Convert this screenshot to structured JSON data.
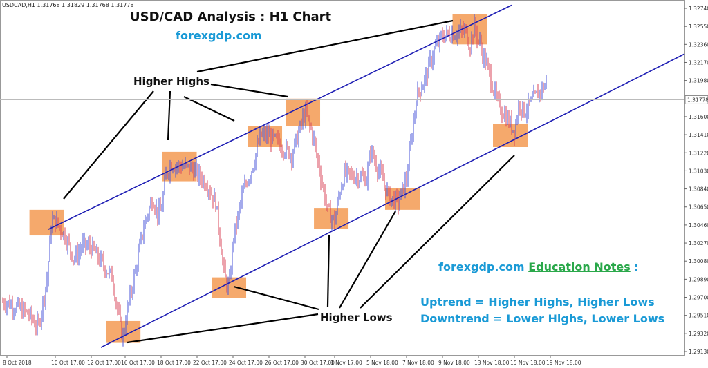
{
  "header": {
    "symbol_info": "USDCAD,H1  1.31768 1.31829 1.31768 1.31778"
  },
  "title": "USD/CAD Analysis : H1 Chart",
  "site": "forexgdp.com",
  "labels": {
    "higher_highs": "Higher Highs",
    "higher_lows": "Higher Lows"
  },
  "notes": {
    "site": "forexgdp.com",
    "education": "Education Notes",
    "colon": " :",
    "uptrend": "Uptrend = Higher Highs, Higher Lows",
    "downtrend": "Downtrend = Lower Highs, Lower Lows"
  },
  "colors": {
    "bull": "#4a55d8",
    "bear": "#d8455a",
    "trendline": "#1e1eb4",
    "box": "#f39a52",
    "grid": "#cccccc"
  },
  "chart_data": {
    "type": "line",
    "title": "USD/CAD Analysis : H1 Chart",
    "x_ticks": [
      "8 Oct 2018",
      "10 Oct 17:00",
      "12 Oct 17:00",
      "16 Oct 17:00",
      "18 Oct 17:00",
      "22 Oct 17:00",
      "24 Oct 17:00",
      "26 Oct 17:00",
      "30 Oct 17:00",
      "1 Nov 17:00",
      "5 Nov 18:00",
      "7 Nov 18:00",
      "9 Nov 18:00",
      "13 Nov 18:00",
      "15 Nov 18:00",
      "19 Nov 18:00"
    ],
    "y_ticks": [
      1.3274,
      1.3255,
      1.3236,
      1.3217,
      1.3198,
      1.316,
      1.3141,
      1.3122,
      1.3103,
      1.3084,
      1.3065,
      1.3046,
      1.3027,
      1.3008,
      1.2989,
      1.297,
      1.2951,
      1.2932,
      1.2913
    ],
    "y_tick_labels": [
      "1.32740",
      "1.32550",
      "1.32360",
      "1.32170",
      "1.31980",
      "1.31600",
      "1.31410",
      "1.31220",
      "1.31030",
      "1.30840",
      "1.30650",
      "1.30460",
      "1.30270",
      "1.30080",
      "1.29890",
      "1.29700",
      "1.29510",
      "1.29320",
      "1.29130"
    ],
    "current_price": 1.31778,
    "current_price_label": "1.31778",
    "ylim": [
      1.2906,
      1.3278
    ],
    "series": [
      {
        "points": [
          [
            "8 Oct 2018",
            1.2965
          ],
          [
            "9 Oct 06:00",
            1.2952
          ],
          [
            "9 Oct 18:00",
            1.2938
          ],
          [
            "10 Oct 06:00",
            1.299
          ],
          [
            "10 Oct 12:00",
            1.305
          ],
          [
            "10 Oct 17:00",
            1.305
          ],
          [
            "11 Oct 06:00",
            1.3035
          ],
          [
            "11 Oct 18:00",
            1.301
          ],
          [
            "12 Oct 06:00",
            1.3025
          ],
          [
            "12 Oct 17:00",
            1.3022
          ],
          [
            "15 Oct 06:00",
            1.299
          ],
          [
            "15 Oct 18:00",
            1.296
          ],
          [
            "16 Oct 06:00",
            1.2935
          ],
          [
            "16 Oct 12:00",
            1.2928
          ],
          [
            "16 Oct 17:00",
            1.2945
          ],
          [
            "17 Oct 06:00",
            1.2995
          ],
          [
            "17 Oct 18:00",
            1.3045
          ],
          [
            "18 Oct 06:00",
            1.3075
          ],
          [
            "18 Oct 12:00",
            1.3058
          ],
          [
            "18 Oct 17:00",
            1.306
          ],
          [
            "19 Oct 06:00",
            1.3098
          ],
          [
            "19 Oct 18:00",
            1.311
          ],
          [
            "22 Oct 06:00",
            1.3105
          ],
          [
            "22 Oct 17:00",
            1.31
          ],
          [
            "23 Oct 06:00",
            1.309
          ],
          [
            "23 Oct 18:00",
            1.307
          ],
          [
            "24 Oct 06:00",
            1.299
          ],
          [
            "24 Oct 12:00",
            1.298
          ],
          [
            "24 Oct 17:00",
            1.303
          ],
          [
            "25 Oct 06:00",
            1.308
          ],
          [
            "25 Oct 18:00",
            1.3105
          ],
          [
            "26 Oct 06:00",
            1.314
          ],
          [
            "26 Oct 17:00",
            1.314
          ],
          [
            "29 Oct 06:00",
            1.312
          ],
          [
            "29 Oct 18:00",
            1.3135
          ],
          [
            "30 Oct 06:00",
            1.315
          ],
          [
            "30 Oct 17:00",
            1.3165
          ],
          [
            "31 Oct 06:00",
            1.314
          ],
          [
            "31 Oct 18:00",
            1.31
          ],
          [
            "1 Nov 06:00",
            1.306
          ],
          [
            "1 Nov 17:00",
            1.305
          ],
          [
            "2 Nov 06:00",
            1.308
          ],
          [
            "2 Nov 18:00",
            1.31
          ],
          [
            "5 Nov 06:00",
            1.3095
          ],
          [
            "5 Nov 18:00",
            1.3125
          ],
          [
            "6 Nov 06:00",
            1.31
          ],
          [
            "6 Nov 18:00",
            1.3075
          ],
          [
            "7 Nov 06:00",
            1.307
          ],
          [
            "7 Nov 18:00",
            1.3095
          ],
          [
            "8 Nov 06:00",
            1.318
          ],
          [
            "8 Nov 18:00",
            1.32
          ],
          [
            "9 Nov 06:00",
            1.323
          ],
          [
            "9 Nov 18:00",
            1.3245
          ],
          [
            "12 Nov 06:00",
            1.325
          ],
          [
            "12 Nov 18:00",
            1.3235
          ],
          [
            "13 Nov 06:00",
            1.3255
          ],
          [
            "13 Nov 18:00",
            1.324
          ],
          [
            "14 Nov 06:00",
            1.321
          ],
          [
            "14 Nov 18:00",
            1.3175
          ],
          [
            "15 Nov 06:00",
            1.316
          ],
          [
            "15 Nov 18:00",
            1.3145
          ],
          [
            "16 Nov 06:00",
            1.3175
          ],
          [
            "16 Nov 18:00",
            1.3165
          ],
          [
            "19 Nov 06:00",
            1.3195
          ],
          [
            "19 Nov 12:00",
            1.317
          ],
          [
            "19 Nov 18:00",
            1.31778
          ]
        ]
      }
    ],
    "trendlines": [
      {
        "from": [
          "10 Oct 17:00",
          1.3045
        ],
        "to": [
          "19 Nov 18:00",
          1.3297
        ]
      },
      {
        "from": [
          "16 Oct 06:00",
          1.2928
        ],
        "to": [
          "19 Nov 18:00",
          1.3155
        ]
      }
    ],
    "zones": [
      {
        "label": "Higher Highs",
        "x_range": [
          "9 Oct 18:00",
          "10 Oct 17:00"
        ],
        "y_range": [
          1.3035,
          1.3062
        ]
      },
      {
        "label": "Higher Highs",
        "x_range": [
          "19 Oct 06:00",
          "22 Oct 06:00"
        ],
        "y_range": [
          1.3092,
          1.3123
        ]
      },
      {
        "label": "Higher Highs",
        "x_range": [
          "26 Oct 06:00",
          "26 Oct 17:00"
        ],
        "y_range": [
          1.3128,
          1.315
        ]
      },
      {
        "label": "Higher Highs",
        "x_range": [
          "30 Oct 06:00",
          "30 Oct 17:00"
        ],
        "y_range": [
          1.315,
          1.3179
        ]
      },
      {
        "label": "Higher Highs",
        "x_range": [
          "12 Nov 06:00",
          "13 Nov 06:00"
        ],
        "y_range": [
          1.3236,
          1.3268
        ]
      },
      {
        "label": "Higher Lows",
        "x_range": [
          "16 Oct 06:00",
          "16 Oct 17:00"
        ],
        "y_range": [
          1.2922,
          1.2945
        ]
      },
      {
        "label": "Higher Lows",
        "x_range": [
          "24 Oct 06:00",
          "24 Oct 17:00"
        ],
        "y_range": [
          1.2969,
          1.2991
        ]
      },
      {
        "label": "Higher Lows",
        "x_range": [
          "1 Nov 06:00",
          "1 Nov 17:00"
        ],
        "y_range": [
          1.3042,
          1.3064
        ]
      },
      {
        "label": "Higher Lows",
        "x_range": [
          "7 Nov 06:00",
          "7 Nov 18:00"
        ],
        "y_range": [
          1.3062,
          1.3085
        ]
      },
      {
        "label": "Higher Lows",
        "x_range": [
          "15 Nov 06:00",
          "15 Nov 18:00"
        ],
        "y_range": [
          1.3128,
          1.3152
        ]
      }
    ],
    "legend": "none",
    "grid": false
  }
}
